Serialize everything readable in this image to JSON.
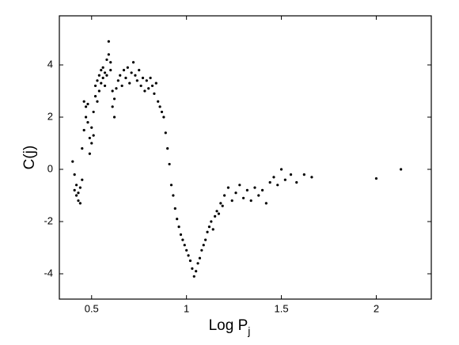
{
  "chart_data": {
    "type": "scatter",
    "xlabel": "Log P",
    "xlabel_sub": "j",
    "ylabel": "C(j)",
    "xlim": [
      0.33,
      2.29
    ],
    "ylim": [
      -4.97,
      5.88
    ],
    "xticks": [
      0.5,
      1,
      1.5,
      2
    ],
    "yticks": [
      -4,
      -2,
      0,
      2,
      4
    ],
    "color": "#000000",
    "x": [
      0.4,
      0.41,
      0.41,
      0.42,
      0.42,
      0.43,
      0.43,
      0.44,
      0.44,
      0.45,
      0.45,
      0.46,
      0.46,
      0.47,
      0.47,
      0.48,
      0.48,
      0.49,
      0.49,
      0.5,
      0.5,
      0.51,
      0.51,
      0.52,
      0.52,
      0.53,
      0.53,
      0.54,
      0.54,
      0.55,
      0.55,
      0.56,
      0.56,
      0.57,
      0.57,
      0.58,
      0.58,
      0.59,
      0.59,
      0.6,
      0.6,
      0.61,
      0.61,
      0.62,
      0.62,
      0.63,
      0.64,
      0.65,
      0.66,
      0.67,
      0.68,
      0.69,
      0.7,
      0.71,
      0.72,
      0.73,
      0.74,
      0.75,
      0.76,
      0.77,
      0.78,
      0.79,
      0.8,
      0.81,
      0.82,
      0.83,
      0.84,
      0.85,
      0.86,
      0.87,
      0.88,
      0.89,
      0.9,
      0.91,
      0.92,
      0.93,
      0.94,
      0.95,
      0.96,
      0.97,
      0.98,
      0.99,
      1.0,
      1.01,
      1.02,
      1.03,
      1.04,
      1.05,
      1.06,
      1.07,
      1.08,
      1.09,
      1.1,
      1.11,
      1.12,
      1.13,
      1.14,
      1.15,
      1.16,
      1.17,
      1.18,
      1.19,
      1.2,
      1.22,
      1.24,
      1.26,
      1.28,
      1.3,
      1.32,
      1.34,
      1.36,
      1.38,
      1.4,
      1.42,
      1.44,
      1.46,
      1.48,
      1.5,
      1.52,
      1.55,
      1.58,
      1.62,
      1.66,
      2.0,
      2.13
    ],
    "y": [
      0.3,
      -0.8,
      -0.2,
      -1.0,
      -0.6,
      -1.2,
      -0.9,
      -1.3,
      -0.7,
      -0.4,
      0.8,
      1.5,
      2.6,
      2.0,
      2.4,
      1.8,
      2.5,
      1.2,
      0.6,
      1.0,
      1.6,
      1.3,
      2.2,
      2.8,
      3.2,
      2.6,
      3.4,
      3.0,
      3.6,
      3.3,
      3.8,
      3.5,
      3.9,
      3.2,
      3.7,
      4.2,
      3.6,
      4.9,
      4.4,
      3.8,
      4.1,
      3.0,
      2.4,
      2.0,
      2.7,
      3.1,
      3.4,
      3.6,
      3.2,
      3.8,
      3.5,
      3.9,
      3.3,
      3.7,
      4.1,
      3.6,
      3.4,
      3.8,
      3.2,
      3.5,
      3.0,
      3.4,
      3.1,
      3.5,
      3.2,
      2.9,
      3.3,
      2.6,
      2.4,
      2.2,
      2.0,
      1.4,
      0.8,
      0.2,
      -0.6,
      -1.0,
      -1.5,
      -1.9,
      -2.2,
      -2.5,
      -2.7,
      -2.9,
      -3.1,
      -3.3,
      -3.5,
      -3.8,
      -4.1,
      -3.9,
      -3.6,
      -3.4,
      -3.1,
      -2.9,
      -2.7,
      -2.4,
      -2.2,
      -2.0,
      -2.3,
      -1.8,
      -1.6,
      -1.7,
      -1.3,
      -1.4,
      -1.0,
      -0.7,
      -1.2,
      -0.9,
      -0.6,
      -1.1,
      -0.8,
      -1.2,
      -0.7,
      -1.0,
      -0.8,
      -1.3,
      -0.5,
      -0.3,
      -0.6,
      0.0,
      -0.4,
      -0.2,
      -0.5,
      -0.2,
      -0.3,
      -0.35,
      0.0
    ]
  }
}
